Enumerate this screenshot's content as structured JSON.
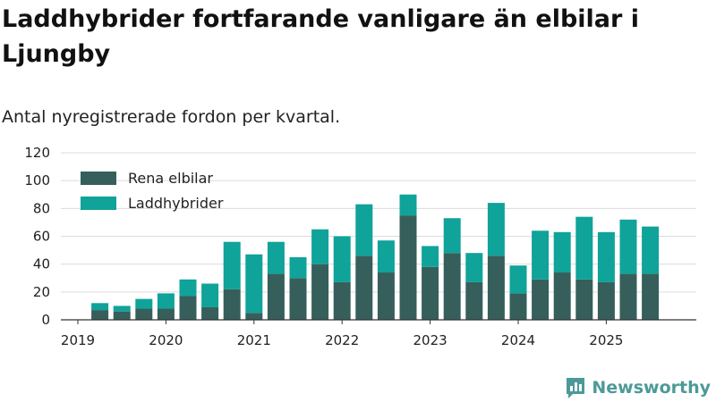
{
  "header": {
    "title": "Laddhybrider fortfarande vanligare än elbilar i Ljungby",
    "subtitle": "Antal nyregistrerade fordon per kvartal."
  },
  "brand": {
    "name": "Newsworthy",
    "color": "#4c9a97"
  },
  "chart_data": {
    "type": "bar",
    "stacked": true,
    "x_tick_labels": [
      "2019",
      "2020",
      "2021",
      "2022",
      "2023",
      "2024",
      "2025"
    ],
    "y_tick_labels": [
      "0",
      "20",
      "40",
      "60",
      "80",
      "100",
      "120"
    ],
    "ylim": [
      0,
      120
    ],
    "categories": [
      "2019 Q2",
      "2019 Q3",
      "2019 Q4",
      "2020 Q1",
      "2020 Q2",
      "2020 Q3",
      "2020 Q4",
      "2021 Q1",
      "2021 Q2",
      "2021 Q3",
      "2021 Q4",
      "2022 Q1",
      "2022 Q2",
      "2022 Q3",
      "2022 Q4",
      "2023 Q1",
      "2023 Q2",
      "2023 Q3",
      "2023 Q4",
      "2024 Q1",
      "2024 Q2",
      "2024 Q3",
      "2024 Q4",
      "2025 Q1",
      "2025 Q2",
      "2025 Q3"
    ],
    "series": [
      {
        "name": "Rena elbilar",
        "color": "#365f5b",
        "values": [
          7,
          6,
          8,
          8,
          17,
          9,
          22,
          5,
          33,
          30,
          40,
          27,
          46,
          34,
          75,
          38,
          48,
          27,
          46,
          19,
          29,
          34,
          29,
          27,
          33,
          33
        ]
      },
      {
        "name": "Laddhybrider",
        "color": "#0fa39a",
        "values": [
          5,
          4,
          7,
          11,
          12,
          17,
          34,
          42,
          23,
          15,
          25,
          33,
          37,
          23,
          15,
          15,
          25,
          21,
          38,
          20,
          35,
          29,
          45,
          36,
          39,
          34
        ]
      }
    ],
    "legend": {
      "placement": "top-left inside plot"
    },
    "grid": true
  }
}
